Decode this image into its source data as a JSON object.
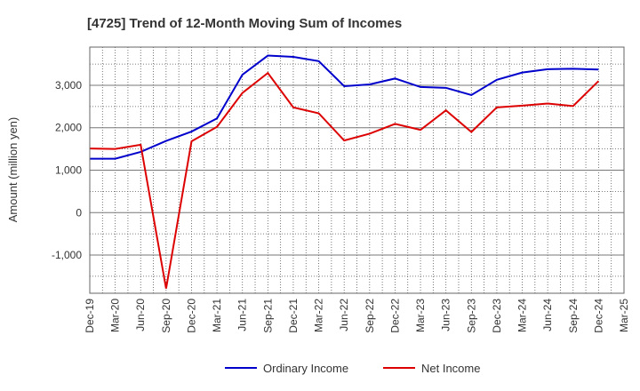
{
  "chart_data": {
    "type": "line",
    "title": "[4725]  Trend of 12-Month Moving Sum of Incomes",
    "xlabel": "",
    "ylabel": "Amount (million yen)",
    "ylim": [
      -1900,
      3900
    ],
    "yticks": [
      -1000,
      0,
      1000,
      2000,
      3000
    ],
    "ytick_labels": [
      "-1,000",
      "0",
      "1,000",
      "2,000",
      "3,000"
    ],
    "grid": true,
    "legend_position": "bottom-center",
    "categories": [
      "Dec-19",
      "Mar-20",
      "Jun-20",
      "Sep-20",
      "Dec-20",
      "Mar-21",
      "Jun-21",
      "Sep-21",
      "Dec-21",
      "Mar-22",
      "Jun-22",
      "Sep-22",
      "Dec-22",
      "Mar-23",
      "Jun-23",
      "Sep-23",
      "Dec-23",
      "Mar-24",
      "Jun-24",
      "Sep-24",
      "Dec-24",
      "Mar-25"
    ],
    "series": [
      {
        "name": "Ordinary Income",
        "color": "#0000cc",
        "values": [
          1270,
          1270,
          1430,
          1690,
          1910,
          2220,
          3250,
          3700,
          3670,
          3570,
          2980,
          3020,
          3160,
          2960,
          2940,
          2770,
          3130,
          3300,
          3380,
          3390,
          3370,
          null
        ]
      },
      {
        "name": "Net Income",
        "color": "#dd0000",
        "values": [
          1510,
          1500,
          1600,
          -1790,
          1680,
          2020,
          2820,
          3290,
          2480,
          2340,
          1700,
          1860,
          2090,
          1950,
          2410,
          1900,
          2480,
          2520,
          2570,
          2510,
          3100,
          null
        ]
      }
    ]
  }
}
